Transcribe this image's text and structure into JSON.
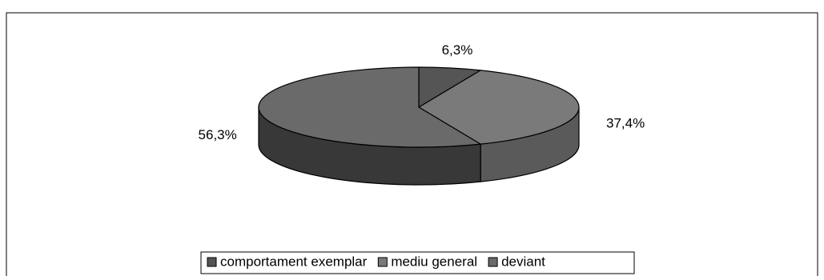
{
  "chart_data": {
    "type": "pie",
    "style": "3d",
    "categories": [
      "comportament exemplar",
      "mediu general",
      "deviant"
    ],
    "values": [
      6.3,
      37.4,
      56.3
    ],
    "labels": [
      "6,3%",
      "37,4%",
      "56,3%"
    ],
    "colors": [
      "#555555",
      "#7a7a7a",
      "#6a6a6a"
    ],
    "side_colors": [
      "#2e2e2e",
      "#5a5a5a",
      "#383838"
    ],
    "legend_placement": "bottom",
    "title": "",
    "grid": false
  }
}
